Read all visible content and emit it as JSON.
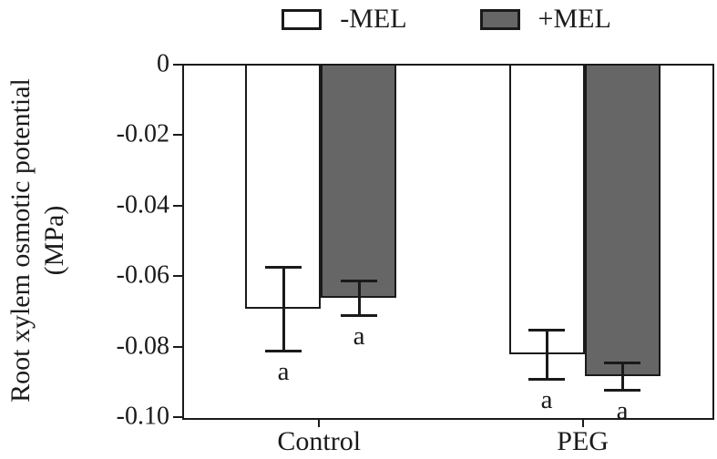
{
  "y_axis": {
    "label_line1": "Root xylem osmotic potential",
    "label_line2": "(MPa)",
    "tick_labels": [
      "0",
      "-0.02",
      "-0.04",
      "-0.06",
      "-0.08",
      "-0.10"
    ]
  },
  "x_axis": {
    "categories": [
      "Control",
      "PEG"
    ]
  },
  "legend": {
    "position": "top-center",
    "items": [
      {
        "label": "-MEL",
        "fill": "#ffffff"
      },
      {
        "label": "+MEL",
        "fill": "#666666"
      }
    ]
  },
  "colors": {
    "axis": "#1a1a1a",
    "bar_no_mel": "#ffffff",
    "bar_plus_mel": "#666666",
    "background": "#ffffff"
  },
  "chart_data": {
    "type": "bar",
    "title": "",
    "xlabel": "",
    "ylabel": "Root xylem osmotic potential (MPa)",
    "categories": [
      "Control",
      "PEG"
    ],
    "series": [
      {
        "name": "-MEL",
        "fill": "#ffffff",
        "values": [
          -0.069,
          -0.082
        ],
        "errors": [
          0.012,
          0.007
        ],
        "letters": [
          "a",
          "a"
        ]
      },
      {
        "name": "+MEL",
        "fill": "#666666",
        "values": [
          -0.066,
          -0.088
        ],
        "errors": [
          0.005,
          0.004
        ],
        "letters": [
          "a",
          "a"
        ]
      }
    ],
    "ylim": [
      -0.1,
      0
    ],
    "yticks": [
      0,
      -0.02,
      -0.04,
      -0.06,
      -0.08,
      -0.1
    ],
    "grid": false,
    "error_bars": "symmetric-with-caps",
    "legend_position": "top-center"
  }
}
